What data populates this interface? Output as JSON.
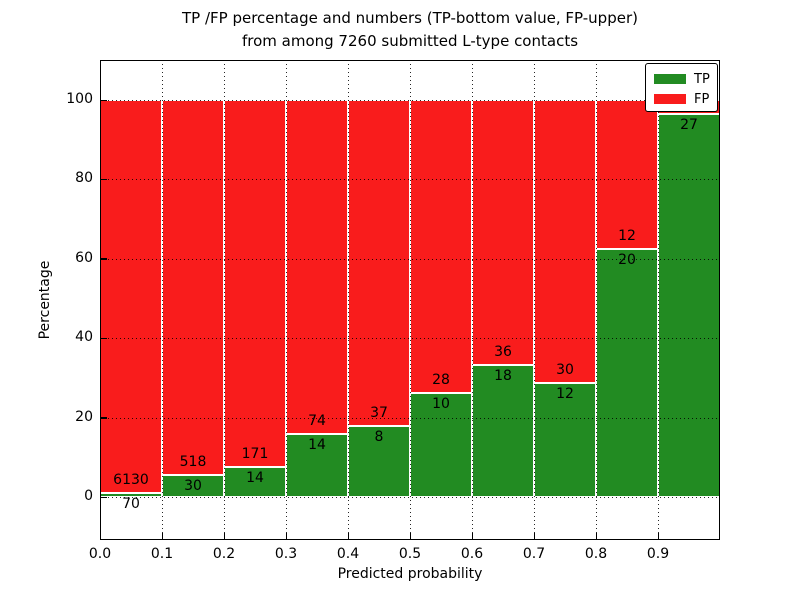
{
  "title": {
    "line1": "TP /FP percentage and numbers (TP-bottom value, FP-upper)",
    "line2": "from among 7260 submitted L-type contacts"
  },
  "axes": {
    "xlabel": "Predicted probability",
    "ylabel": "Percentage",
    "x_ticks": [
      "0.0",
      "0.1",
      "0.2",
      "0.3",
      "0.4",
      "0.5",
      "0.6",
      "0.7",
      "0.8",
      "0.9"
    ],
    "y_ticks": [
      "0",
      "20",
      "40",
      "60",
      "80",
      "100"
    ]
  },
  "legend": {
    "items": [
      {
        "label": "TP",
        "color": "#228b22"
      },
      {
        "label": "FP",
        "color": "#f91c1c"
      }
    ]
  },
  "colors": {
    "tp_green": "#228b22",
    "fp_red": "#f91c1c",
    "bar_edge": "#ffffff",
    "grid": "#000000"
  },
  "chart_data": {
    "type": "bar",
    "stacked": true,
    "title": "TP /FP percentage and numbers (TP-bottom value, FP-upper) from among 7260 submitted L-type contacts",
    "xlabel": "Predicted probability",
    "ylabel": "Percentage",
    "xlim": [
      0,
      1.0
    ],
    "ylim": [
      -11,
      110
    ],
    "grid": true,
    "legend_position": "upper right",
    "total_submitted_contacts": 7260,
    "categories": [
      "0.0-0.1",
      "0.1-0.2",
      "0.2-0.3",
      "0.3-0.4",
      "0.4-0.5",
      "0.5-0.6",
      "0.6-0.7",
      "0.7-0.8",
      "0.8-0.9",
      "0.9-1.0"
    ],
    "bin_starts": [
      0.0,
      0.1,
      0.2,
      0.3,
      0.4,
      0.5,
      0.6,
      0.7,
      0.8,
      0.9
    ],
    "bin_width": 0.1,
    "series": [
      {
        "name": "TP",
        "color": "#228b22",
        "counts": [
          70,
          30,
          14,
          14,
          8,
          10,
          18,
          12,
          20,
          27
        ],
        "pct": [
          1.1,
          5.5,
          7.6,
          15.9,
          17.8,
          26.3,
          33.3,
          28.6,
          62.5,
          96.4
        ]
      },
      {
        "name": "FP",
        "color": "#f91c1c",
        "counts": [
          6130,
          518,
          171,
          74,
          37,
          28,
          36,
          30,
          12,
          null
        ],
        "pct": [
          98.9,
          94.5,
          92.4,
          84.1,
          82.2,
          73.7,
          66.7,
          71.4,
          37.5,
          3.6
        ]
      }
    ],
    "annotations": {
      "tp_labels": [
        "70",
        "30",
        "14",
        "14",
        "8",
        "10",
        "18",
        "12",
        "20",
        "27"
      ],
      "fp_labels": [
        "6130",
        "518",
        "171",
        "74",
        "37",
        "28",
        "36",
        "30",
        "12",
        ""
      ]
    }
  }
}
